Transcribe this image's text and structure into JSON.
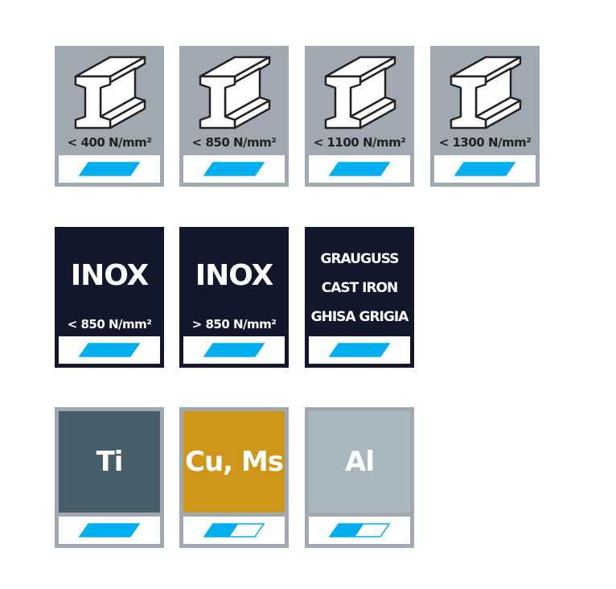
{
  "colors": {
    "steel_bg": "#a0a8b1",
    "inox_bg": "#12172b",
    "indicator": "#00aeef",
    "ti": "#475e6b",
    "cu_ms": "#d0961a",
    "al": "#a9b8bf"
  },
  "steel": [
    {
      "label": "< 400 N/mm²",
      "icon": "i-beam-icon",
      "level": 1
    },
    {
      "label": "< 850 N/mm²",
      "icon": "i-beam-icon",
      "level": 1
    },
    {
      "label": "< 1100 N/mm²",
      "icon": "i-beam-icon",
      "level": 1
    },
    {
      "label": "< 1300 N/mm²",
      "icon": "i-beam-icon",
      "level": 1
    }
  ],
  "inox": [
    {
      "title": "INOX",
      "label": "< 850 N/mm²",
      "level": 1
    },
    {
      "title": "INOX",
      "label": "> 850 N/mm²",
      "level": 1
    }
  ],
  "cast_iron": {
    "lines": [
      "GRAUGUSS",
      "CAST IRON",
      "GHISA GRIGIA"
    ],
    "level": 1
  },
  "nonferrous": [
    {
      "label": "Ti",
      "level": 1
    },
    {
      "label": "Cu, Ms",
      "level": 0.5
    },
    {
      "label": "Al",
      "level": 0.5
    }
  ]
}
